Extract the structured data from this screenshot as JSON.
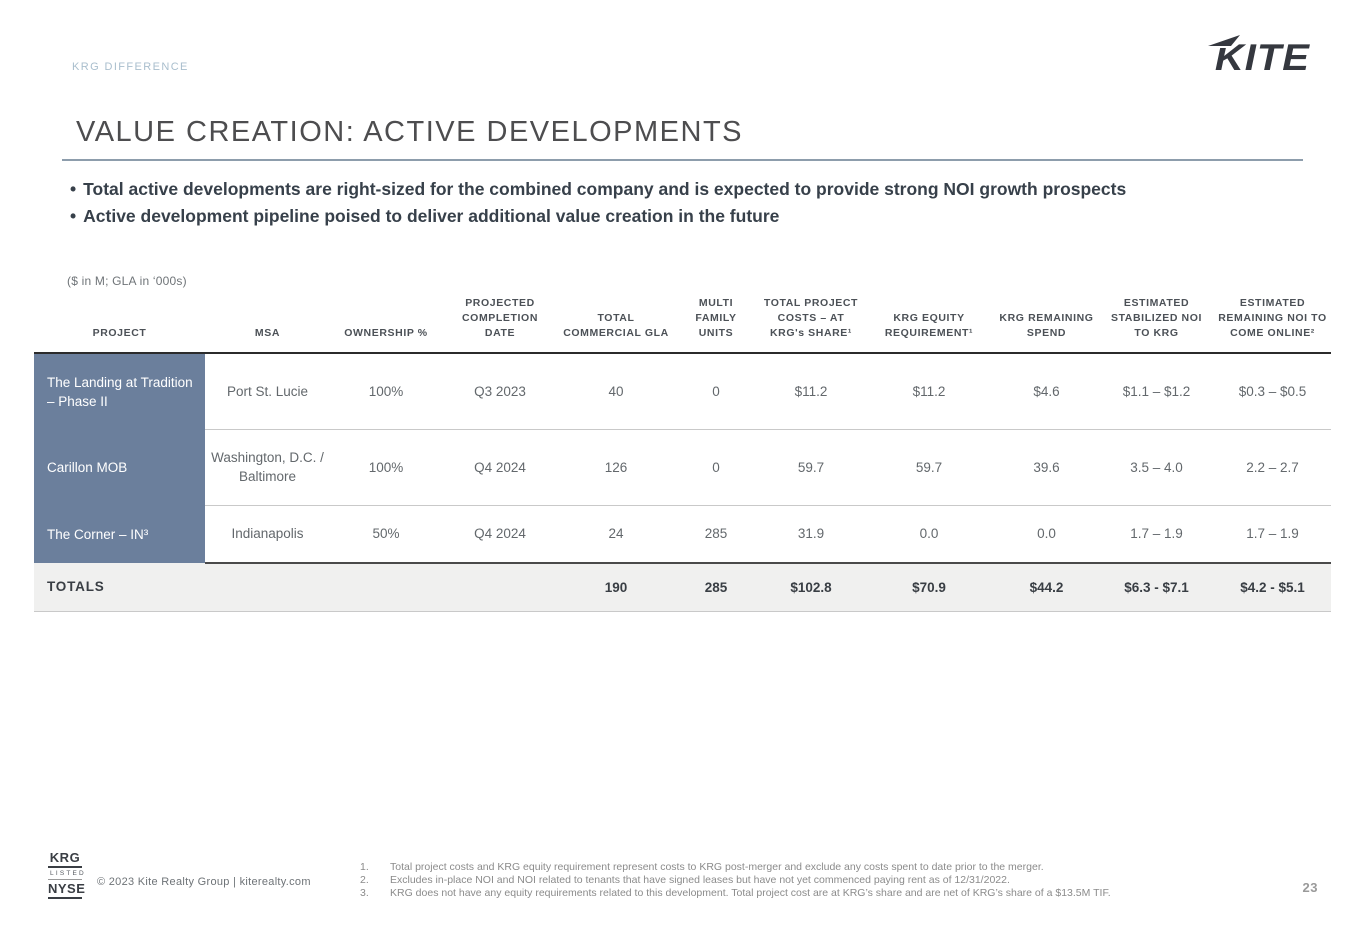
{
  "header": {
    "eyebrow": "KRG DIFFERENCE",
    "logo_text": "KITE"
  },
  "title": "VALUE CREATION: ACTIVE DEVELOPMENTS",
  "bullets": [
    "Total active developments are right-sized for the combined company and is expected to provide strong NOI growth prospects",
    "Active development pipeline poised to deliver additional value creation in the future"
  ],
  "table": {
    "note": "($ in M; GLA in ‘000s)",
    "columns": [
      "PROJECT",
      "MSA",
      "OWNERSHIP %",
      "PROJECTED COMPLETION DATE",
      "TOTAL COMMERCIAL GLA",
      "MULTI FAMILY UNITS",
      "TOTAL PROJECT COSTS – AT KRG's SHARE¹",
      "KRG EQUITY REQUIREMENT¹",
      "KRG REMAINING SPEND",
      "ESTIMATED STABILIZED NOI TO KRG",
      "ESTIMATED REMAINING NOI TO COME ONLINE²"
    ],
    "rows": [
      {
        "project": "The Landing at Tradition – Phase II",
        "values": [
          "Port St. Lucie",
          "100%",
          "Q3 2023",
          "40",
          "0",
          "$11.2",
          "$11.2",
          "$4.6",
          "$1.1 – $1.2",
          "$0.3 – $0.5"
        ]
      },
      {
        "project": "Carillon MOB",
        "values": [
          "Washington, D.C. / Baltimore",
          "100%",
          "Q4 2024",
          "126",
          "0",
          "59.7",
          "59.7",
          "39.6",
          "3.5 – 4.0",
          "2.2 – 2.7"
        ]
      },
      {
        "project": "The Corner – IN³",
        "values": [
          "Indianapolis",
          "50%",
          "Q4 2024",
          "24",
          "285",
          "31.9",
          "0.0",
          "0.0",
          "1.7 – 1.9",
          "1.7 – 1.9"
        ]
      }
    ],
    "totals": {
      "label": "TOTALS",
      "values": [
        "",
        "",
        "",
        "190",
        "285",
        "$102.8",
        "$70.9",
        "$44.2",
        "$6.3 - $7.1",
        "$4.2 - $5.1"
      ]
    }
  },
  "footer": {
    "exchange_badge": {
      "ticker": "KRG",
      "listed": "LISTED",
      "exchange": "NYSE"
    },
    "copyright": "© 2023 Kite Realty Group  |  kiterealty.com",
    "footnotes": [
      {
        "num": "1.",
        "text": "Total project costs and KRG equity requirement represent costs to KRG post-merger and exclude any costs spent to date prior to the merger."
      },
      {
        "num": "2.",
        "text": "Excludes in-place NOI and NOI related to tenants that have signed leases but have not yet commenced paying rent as of 12/31/2022."
      },
      {
        "num": "3.",
        "text": "KRG does not have any equity requirements related to this development. Total project cost are at KRG’s share and are net of KRG’s share of a $13.5M TIF."
      }
    ],
    "page_number": "23"
  },
  "colors": {
    "accent_blue_cell": "#6b7f9c",
    "eyebrow_blue": "#a9becd",
    "totals_bg": "#f0f0ef",
    "dark_border": "#2b2b2b",
    "logo_dark": "#35383f"
  }
}
